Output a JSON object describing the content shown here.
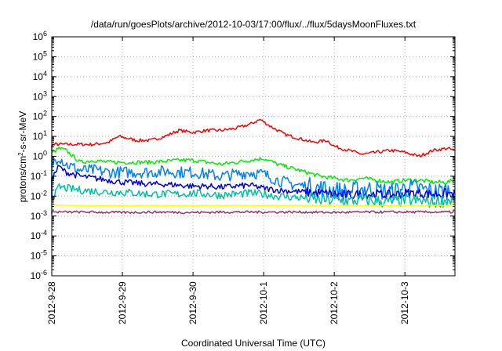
{
  "chart_data": {
    "type": "line",
    "title": "/data/run/goesPlots/archive/2012-10-03/17:00/flux/../flux/5daysMoonFluxes.txt",
    "xlabel": "Coordinated Universal Time (UTC)",
    "ylabel": {
      "base": "protons/cm",
      "sup": "2",
      "rest": "-s-sr-MeV"
    },
    "x_ticks": [
      "2012-9-28",
      "2012-9-29",
      "2012-9-30",
      "2012-10-1",
      "2012-10-2",
      "2012-10-3"
    ],
    "xlim": [
      "2012-09-28T00:00",
      "2012-10-03T17:00"
    ],
    "y_scale": "log",
    "ylim": [
      1e-06,
      1000000.0
    ],
    "y_ticks": [
      {
        "base": "10",
        "exp": "6"
      },
      {
        "base": "10",
        "exp": "5"
      },
      {
        "base": "10",
        "exp": "4"
      },
      {
        "base": "10",
        "exp": "3"
      },
      {
        "base": "10",
        "exp": "2"
      },
      {
        "base": "10",
        "exp": "1"
      },
      {
        "base": "10",
        "exp": "0"
      },
      {
        "base": "10",
        "exp": "-1"
      },
      {
        "base": "10",
        "exp": "-2"
      },
      {
        "base": "10",
        "exp": "-3"
      },
      {
        "base": "10",
        "exp": "-4"
      },
      {
        "base": "10",
        "exp": "-5"
      },
      {
        "base": "10",
        "exp": "-6"
      }
    ],
    "grid": true,
    "series": [
      {
        "color": "#ff0000",
        "points": [
          [
            -0.3,
            0.3
          ],
          [
            -0.1,
            0.4
          ],
          [
            0.05,
            0.6
          ],
          [
            0.2,
            0.6
          ],
          [
            0.4,
            0.6
          ],
          [
            0.6,
            0.6
          ],
          [
            0.8,
            0.7
          ],
          [
            0.95,
            1.0
          ],
          [
            1.2,
            0.8
          ],
          [
            1.4,
            0.8
          ],
          [
            1.6,
            1.0
          ],
          [
            1.8,
            1.3
          ],
          [
            2.0,
            1.2
          ],
          [
            2.2,
            1.3
          ],
          [
            2.4,
            1.3
          ],
          [
            2.6,
            1.4
          ],
          [
            2.8,
            1.6
          ],
          [
            2.95,
            1.85
          ],
          [
            3.1,
            1.5
          ],
          [
            3.3,
            1.1
          ],
          [
            3.5,
            0.9
          ],
          [
            3.7,
            0.7
          ],
          [
            3.9,
            0.8
          ],
          [
            4.0,
            0.5
          ],
          [
            4.2,
            0.3
          ],
          [
            4.4,
            0.1
          ],
          [
            4.6,
            0.2
          ],
          [
            4.8,
            0.3
          ],
          [
            5.0,
            0.2
          ],
          [
            5.2,
            0.0
          ],
          [
            5.4,
            0.3
          ],
          [
            5.6,
            0.4
          ],
          [
            5.7,
            0.3
          ]
        ],
        "jitter": 0.08
      },
      {
        "color": "#00ee00",
        "points": [
          [
            -0.3,
            -0.9
          ],
          [
            -0.1,
            -0.2
          ],
          [
            0.02,
            0.2
          ],
          [
            0.1,
            0.4
          ],
          [
            0.2,
            0.3
          ],
          [
            0.4,
            -0.3
          ],
          [
            0.6,
            -0.2
          ],
          [
            0.8,
            -0.3
          ],
          [
            1.0,
            -0.3
          ],
          [
            1.2,
            -0.3
          ],
          [
            1.4,
            -0.3
          ],
          [
            1.6,
            -0.25
          ],
          [
            1.8,
            -0.2
          ],
          [
            2.0,
            -0.2
          ],
          [
            2.2,
            -0.3
          ],
          [
            2.4,
            -0.4
          ],
          [
            2.6,
            -0.3
          ],
          [
            2.8,
            -0.2
          ],
          [
            3.0,
            -0.1
          ],
          [
            3.2,
            -0.4
          ],
          [
            3.4,
            -0.6
          ],
          [
            3.6,
            -0.8
          ],
          [
            3.8,
            -1.0
          ],
          [
            4.0,
            -1.1
          ],
          [
            4.2,
            -1.2
          ],
          [
            4.4,
            -1.1
          ],
          [
            4.6,
            -1.2
          ],
          [
            4.8,
            -1.3
          ],
          [
            5.0,
            -1.2
          ],
          [
            5.2,
            -1.2
          ],
          [
            5.4,
            -1.3
          ],
          [
            5.6,
            -1.3
          ],
          [
            5.7,
            -1.2
          ]
        ],
        "jitter": 0.1
      },
      {
        "color": "#0080ff",
        "points": [
          [
            -0.3,
            -1.8
          ],
          [
            -0.1,
            -0.9
          ],
          [
            0.02,
            -0.3
          ],
          [
            0.1,
            0.0
          ],
          [
            0.2,
            -0.4
          ],
          [
            0.4,
            -0.7
          ],
          [
            0.6,
            -0.7
          ],
          [
            0.8,
            -0.8
          ],
          [
            1.0,
            -0.8
          ],
          [
            1.2,
            -0.8
          ],
          [
            1.4,
            -0.8
          ],
          [
            1.6,
            -0.75
          ],
          [
            1.8,
            -0.8
          ],
          [
            2.0,
            -0.8
          ],
          [
            2.2,
            -0.9
          ],
          [
            2.4,
            -1.0
          ],
          [
            2.6,
            -0.9
          ],
          [
            2.8,
            -0.8
          ],
          [
            3.0,
            -0.9
          ],
          [
            3.2,
            -1.2
          ],
          [
            3.4,
            -1.4
          ],
          [
            3.6,
            -1.5
          ],
          [
            3.8,
            -1.6
          ],
          [
            4.0,
            -1.7
          ],
          [
            4.2,
            -1.8
          ],
          [
            4.4,
            -1.6
          ],
          [
            4.6,
            -1.7
          ],
          [
            4.8,
            -1.8
          ],
          [
            5.0,
            -1.6
          ],
          [
            5.2,
            -1.6
          ],
          [
            5.4,
            -1.8
          ],
          [
            5.6,
            -1.7
          ],
          [
            5.7,
            -1.7
          ]
        ],
        "jitter": 0.3
      },
      {
        "color": "#0000dd",
        "points": [
          [
            -0.3,
            -2.1
          ],
          [
            -0.1,
            -1.6
          ],
          [
            0.02,
            -1.0
          ],
          [
            0.1,
            -0.5
          ],
          [
            0.2,
            -0.8
          ],
          [
            0.4,
            -1.0
          ],
          [
            0.6,
            -1.1
          ],
          [
            0.8,
            -1.2
          ],
          [
            1.0,
            -1.3
          ],
          [
            1.2,
            -1.35
          ],
          [
            1.4,
            -1.4
          ],
          [
            1.6,
            -1.4
          ],
          [
            1.8,
            -1.45
          ],
          [
            2.0,
            -1.5
          ],
          [
            2.2,
            -1.5
          ],
          [
            2.4,
            -1.55
          ],
          [
            2.6,
            -1.5
          ],
          [
            2.8,
            -1.45
          ],
          [
            3.0,
            -1.6
          ],
          [
            3.2,
            -1.7
          ],
          [
            3.4,
            -1.75
          ],
          [
            3.6,
            -1.8
          ],
          [
            3.8,
            -1.85
          ],
          [
            4.0,
            -1.9
          ],
          [
            4.2,
            -1.95
          ],
          [
            4.4,
            -1.9
          ],
          [
            4.6,
            -1.9
          ],
          [
            4.8,
            -1.95
          ],
          [
            5.0,
            -1.85
          ],
          [
            5.2,
            -1.85
          ],
          [
            5.4,
            -1.9
          ],
          [
            5.6,
            -1.85
          ],
          [
            5.7,
            -1.9
          ]
        ],
        "jitter": 0.15
      },
      {
        "color": "#00c0a0",
        "points": [
          [
            -0.3,
            -2.6
          ],
          [
            -0.1,
            -2.3
          ],
          [
            0.05,
            -1.9
          ],
          [
            0.1,
            -1.55
          ],
          [
            0.2,
            -1.6
          ],
          [
            0.4,
            -1.7
          ],
          [
            0.6,
            -1.75
          ],
          [
            0.8,
            -1.8
          ],
          [
            1.0,
            -1.8
          ],
          [
            1.2,
            -1.85
          ],
          [
            1.4,
            -1.9
          ],
          [
            1.6,
            -1.9
          ],
          [
            1.8,
            -1.9
          ],
          [
            2.0,
            -1.85
          ],
          [
            2.2,
            -1.9
          ],
          [
            2.4,
            -1.95
          ],
          [
            2.6,
            -1.9
          ],
          [
            2.8,
            -1.85
          ],
          [
            3.0,
            -1.9
          ],
          [
            3.2,
            -2.0
          ],
          [
            3.4,
            -2.05
          ],
          [
            3.6,
            -2.1
          ],
          [
            3.8,
            -2.2
          ],
          [
            4.0,
            -2.2
          ],
          [
            4.2,
            -2.25
          ],
          [
            4.4,
            -2.2
          ],
          [
            4.6,
            -2.25
          ],
          [
            4.8,
            -2.3
          ],
          [
            5.0,
            -2.2
          ],
          [
            5.2,
            -2.25
          ],
          [
            5.4,
            -2.3
          ],
          [
            5.6,
            -2.2
          ],
          [
            5.7,
            -2.25
          ]
        ],
        "jitter": 0.2
      },
      {
        "color": "#ffff00",
        "points": [
          [
            -0.3,
            -2.45
          ],
          [
            0.0,
            -2.45
          ],
          [
            0.5,
            -2.48
          ],
          [
            1.0,
            -2.48
          ],
          [
            1.5,
            -2.47
          ],
          [
            2.0,
            -2.48
          ],
          [
            2.5,
            -2.47
          ],
          [
            3.0,
            -2.47
          ],
          [
            3.5,
            -2.47
          ],
          [
            4.0,
            -2.47
          ],
          [
            4.5,
            -2.47
          ],
          [
            5.0,
            -2.47
          ],
          [
            5.5,
            -2.47
          ],
          [
            5.7,
            -2.47
          ]
        ],
        "jitter": 0.02
      },
      {
        "color": "#993366",
        "points": [
          [
            -0.3,
            -2.85
          ],
          [
            0.0,
            -2.8
          ],
          [
            0.5,
            -2.8
          ],
          [
            1.0,
            -2.82
          ],
          [
            1.5,
            -2.8
          ],
          [
            2.0,
            -2.82
          ],
          [
            2.5,
            -2.8
          ],
          [
            3.0,
            -2.8
          ],
          [
            3.5,
            -2.8
          ],
          [
            4.0,
            -2.82
          ],
          [
            4.5,
            -2.8
          ],
          [
            5.0,
            -2.8
          ],
          [
            5.5,
            -2.8
          ],
          [
            5.7,
            -2.8
          ]
        ],
        "jitter": 0.06
      }
    ]
  }
}
